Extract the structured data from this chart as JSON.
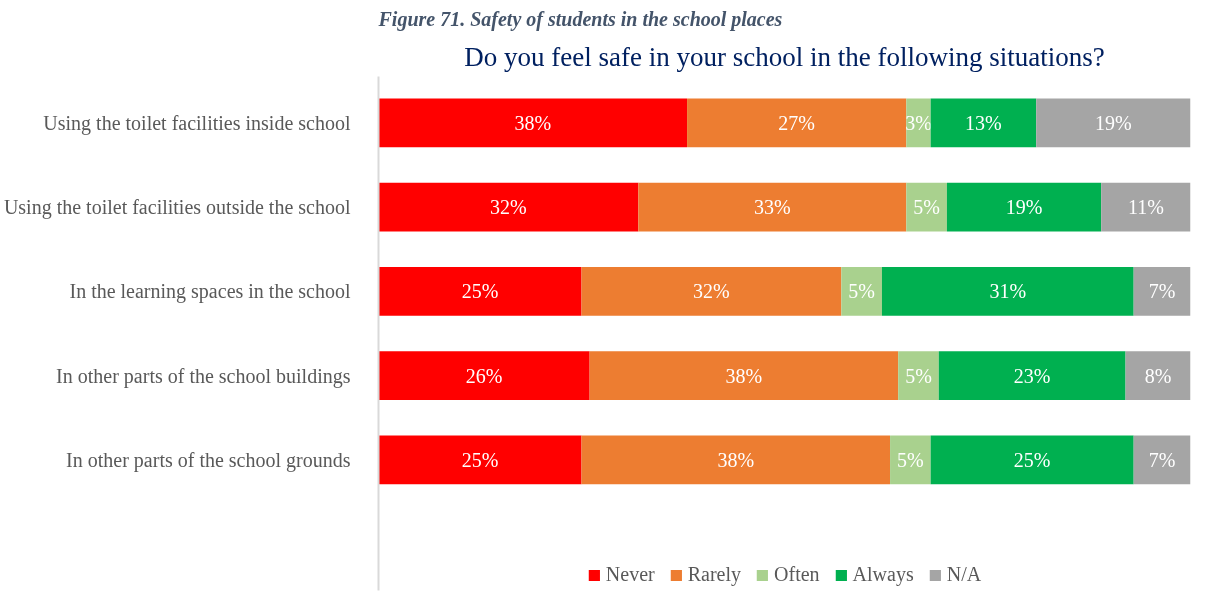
{
  "chart_data": {
    "type": "bar",
    "orientation": "horizontal",
    "stacked": true,
    "title": "Do you feel safe in your school in the following situations?",
    "annotations": [
      "Figure 71. Safety of students in the school places"
    ],
    "categories": [
      "Using the toilet facilities inside school",
      "Using the toilet facilities outside the school",
      "In the learning spaces in the school",
      "In other parts of the school buildings",
      "In other parts of the school grounds"
    ],
    "series": [
      {
        "name": "Never",
        "color": "#ff0000",
        "values": [
          38,
          32,
          25,
          26,
          25
        ],
        "value_labels": [
          "38%",
          "32%",
          "25%",
          "26%",
          "25%"
        ]
      },
      {
        "name": "Rarely",
        "color": "#ed7d31",
        "values": [
          27,
          33,
          32,
          38,
          38
        ],
        "value_labels": [
          "27%",
          "33%",
          "32%",
          "38%",
          "38%"
        ]
      },
      {
        "name": "Often",
        "color": "#a9d18e",
        "values": [
          3,
          5,
          5,
          5,
          5
        ],
        "value_labels": [
          "3%",
          "5%",
          "5%",
          "5%",
          "5%"
        ]
      },
      {
        "name": "Always",
        "color": "#00b050",
        "values": [
          13,
          19,
          31,
          23,
          25
        ],
        "value_labels": [
          "13%",
          "19%",
          "31%",
          "23%",
          "25%"
        ]
      },
      {
        "name": "N/A",
        "color": "#a5a5a5",
        "values": [
          19,
          11,
          7,
          8,
          7
        ],
        "value_labels": [
          "19%",
          "11%",
          "7%",
          "8%",
          "7%"
        ]
      }
    ],
    "legend": "bottom",
    "grid": false
  }
}
